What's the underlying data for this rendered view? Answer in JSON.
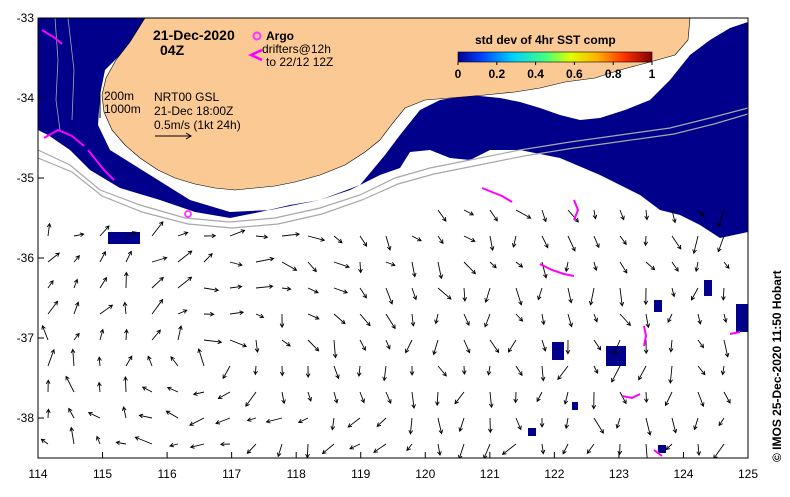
{
  "map": {
    "date_title": "21-Dec-2020",
    "time_title": "04Z",
    "legend_argo_label": "Argo",
    "legend_drifters_label": "drifters@12h",
    "legend_drifters_sub": "to 22/12 12Z",
    "depth_200": "200m",
    "depth_1000": "1000m",
    "gsl_line1": "NRT00 GSL",
    "gsl_line2": "21-Dec 18:00Z",
    "gsl_line3": "0.5m/s (1kt 24h)",
    "colorbar_title": "std dev of 4hr SST comp",
    "colorbar_ticks": [
      "0",
      "0.2",
      "0.4",
      "0.6",
      "0.8",
      "1"
    ],
    "colorbar_range": [
      0,
      1
    ],
    "x_ticks": [
      "114",
      "115",
      "116",
      "117",
      "118",
      "119",
      "120",
      "121",
      "122",
      "123",
      "124",
      "125"
    ],
    "y_ticks": [
      "-33",
      "-34",
      "-35",
      "-36",
      "-37",
      "-38"
    ],
    "lon_range": [
      114,
      125
    ],
    "lat_range": [
      -38.5,
      -33
    ],
    "credit": "© IMOS 25-Dec-2020 11:50 Hobart",
    "colors": {
      "land": "#fbc994",
      "cloud_mask": "#00008b",
      "argo_marker": "#ff33ff",
      "drifter": "#ff00ff",
      "isobath": "#a8a8a8",
      "vector": "#000000"
    }
  }
}
